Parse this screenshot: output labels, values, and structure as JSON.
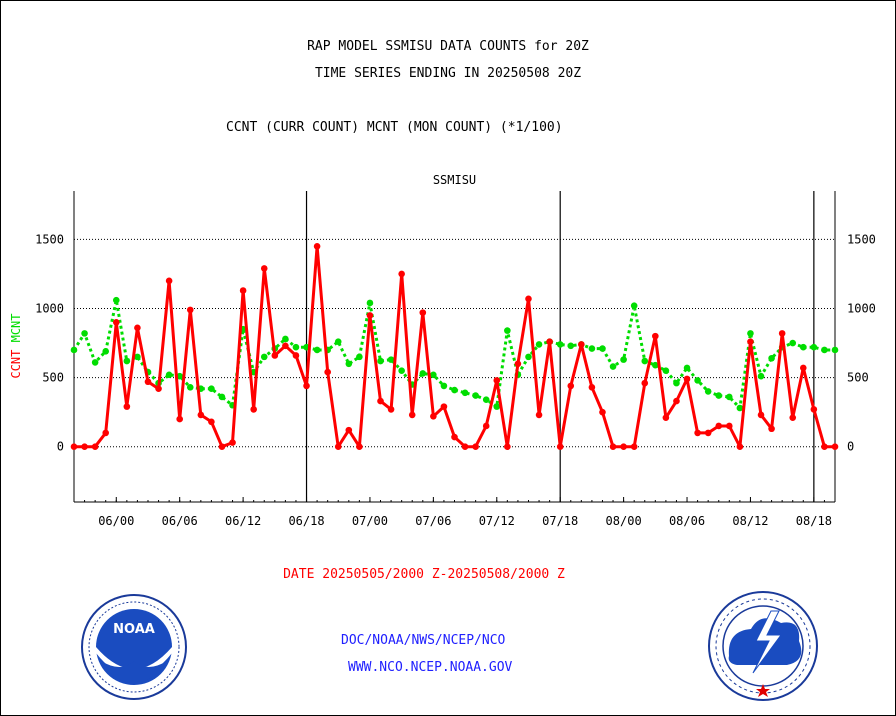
{
  "title_line1": "RAP MODEL SSMISU DATA COUNTS for 20Z",
  "title_line2": "TIME SERIES ENDING IN 20250508 20Z",
  "subtitle": "CCNT (CURR COUNT) MCNT (MON COUNT) (*1/100)",
  "date_range": "DATE 20250505/2000 Z-20250508/2000 Z",
  "link1": "DOC/NOAA/NWS/NCEP/NCO",
  "link2": "WWW.NCO.NCEP.NOAA.GOV",
  "logos": {
    "left": "noaa-logo",
    "right": "national-weather-service-logo"
  },
  "colors": {
    "ccnt": "#ff0000",
    "mcnt": "#00dd00",
    "link": "#2020ff",
    "panel_label": "#2020ff"
  },
  "chart_data": {
    "type": "line",
    "panel_label": "SSMISU",
    "ylabel_ccnt": "CCNT",
    "ylabel_mcnt": "MCNT",
    "ylim": [
      -400,
      1850
    ],
    "xlim": [
      0,
      72
    ],
    "yticks": [
      0,
      500,
      1000,
      1500
    ],
    "xticks": [
      {
        "x": 4,
        "label": "06/00"
      },
      {
        "x": 10,
        "label": "06/06"
      },
      {
        "x": 16,
        "label": "06/12"
      },
      {
        "x": 22,
        "label": "06/18"
      },
      {
        "x": 28,
        "label": "07/00"
      },
      {
        "x": 34,
        "label": "07/06"
      },
      {
        "x": 40,
        "label": "07/12"
      },
      {
        "x": 46,
        "label": "07/18"
      },
      {
        "x": 52,
        "label": "08/00"
      },
      {
        "x": 58,
        "label": "08/06"
      },
      {
        "x": 64,
        "label": "08/12"
      },
      {
        "x": 70,
        "label": "08/18"
      }
    ],
    "day_boundaries": [
      22,
      46,
      70
    ],
    "grid": true,
    "series": [
      {
        "name": "CCNT",
        "color": "#ff0000",
        "style": "solid",
        "values": [
          0,
          0,
          0,
          100,
          900,
          290,
          860,
          470,
          420,
          1200,
          200,
          990,
          230,
          180,
          0,
          30,
          1130,
          270,
          1290,
          660,
          730,
          660,
          440,
          1450,
          540,
          0,
          120,
          0,
          950,
          330,
          270,
          1250,
          230,
          970,
          220,
          290,
          70,
          0,
          0,
          150,
          480,
          0,
          600,
          1070,
          230,
          760,
          0,
          440,
          740,
          430,
          250,
          0,
          0,
          0,
          460,
          800,
          210,
          330,
          490,
          100,
          100,
          150,
          150,
          0,
          760,
          230,
          130,
          820,
          210,
          570,
          270,
          0,
          0
        ]
      },
      {
        "name": "MCNT",
        "color": "#00dd00",
        "style": "dotted",
        "values": [
          700,
          820,
          610,
          690,
          1060,
          620,
          650,
          540,
          460,
          520,
          510,
          430,
          420,
          420,
          360,
          300,
          850,
          540,
          650,
          710,
          780,
          720,
          720,
          700,
          700,
          760,
          600,
          650,
          1040,
          620,
          630,
          550,
          450,
          530,
          520,
          440,
          410,
          390,
          370,
          340,
          290,
          840,
          520,
          650,
          740,
          760,
          740,
          730,
          740,
          710,
          710,
          580,
          630,
          1020,
          620,
          590,
          550,
          460,
          570,
          480,
          400,
          370,
          360,
          280,
          820,
          510,
          640,
          720,
          750,
          720,
          720,
          700,
          700
        ]
      }
    ]
  }
}
